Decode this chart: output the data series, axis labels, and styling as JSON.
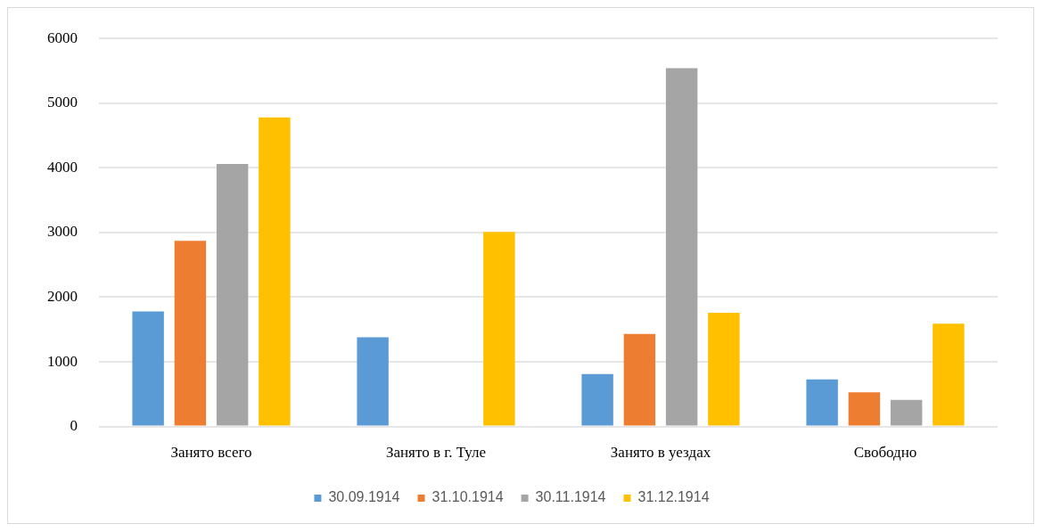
{
  "chart_data": {
    "type": "bar",
    "categories": [
      "Занято всего",
      "Занято в г. Туле",
      "Занято в уездах",
      "Свободно"
    ],
    "series": [
      {
        "name": "30.09.1914",
        "color": "#5b9bd5",
        "values": [
          1780,
          1380,
          810,
          730
        ]
      },
      {
        "name": "31.10.1914",
        "color": "#ed7d31",
        "values": [
          2870,
          null,
          1430,
          530
        ]
      },
      {
        "name": "30.11.1914",
        "color": "#a5a5a5",
        "values": [
          4060,
          null,
          5540,
          410
        ]
      },
      {
        "name": "31.12.1914",
        "color": "#ffc000",
        "values": [
          4780,
          3010,
          1760,
          1590
        ]
      }
    ],
    "ylim": [
      0,
      6000
    ],
    "yticks": [
      0,
      1000,
      2000,
      3000,
      4000,
      5000,
      6000
    ],
    "grid": "y",
    "legend": "bottom"
  }
}
